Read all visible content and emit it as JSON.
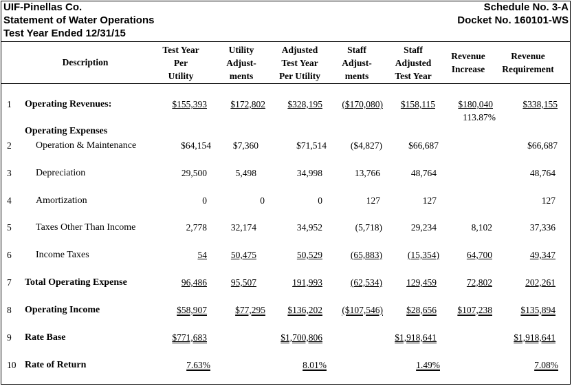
{
  "header": {
    "company": "UIF-Pinellas Co.",
    "statement": "Statement of Water Operations",
    "period": "Test Year Ended 12/31/15",
    "schedule": "Schedule No. 3-A",
    "docket": "Docket No. 160101-WS"
  },
  "columns": [
    {
      "lines": [
        "Description"
      ]
    },
    {
      "lines": [
        "Test Year",
        "Per",
        "Utility"
      ]
    },
    {
      "lines": [
        "Utility",
        "Adjust-",
        "ments"
      ]
    },
    {
      "lines": [
        "Adjusted",
        "Test Year",
        "Per Utility"
      ]
    },
    {
      "lines": [
        "Staff",
        "Adjust-",
        "ments"
      ]
    },
    {
      "lines": [
        "Staff",
        "Adjusted",
        "Test Year"
      ]
    },
    {
      "lines": [
        "Revenue",
        "Increase"
      ]
    },
    {
      "lines": [
        "Revenue",
        "Requirement"
      ]
    }
  ],
  "rows": [
    {
      "num": "1",
      "desc": "Operating Revenues:",
      "values": [
        "$155,393",
        "$172,802",
        "$328,195",
        "($170,080)",
        "$158,115",
        "$180,040",
        "$338,155"
      ],
      "note": "113.87%"
    },
    {
      "num": "",
      "desc": "Operating Expenses",
      "values": []
    },
    {
      "num": "2",
      "desc": "Operation & Maintenance",
      "values": [
        "$64,154",
        "$7,360",
        "$71,514",
        "($4,827)",
        "$66,687",
        "",
        "$66,687"
      ]
    },
    {
      "num": "3",
      "desc": "Depreciation",
      "values": [
        "29,500",
        "5,498",
        "34,998",
        "13,766",
        "48,764",
        "",
        "48,764"
      ]
    },
    {
      "num": "4",
      "desc": "Amortization",
      "values": [
        "0",
        "0",
        "0",
        "127",
        "127",
        "",
        "127"
      ]
    },
    {
      "num": "5",
      "desc": "Taxes Other Than Income",
      "values": [
        "2,778",
        "32,174",
        "34,952",
        "(5,718)",
        "29,234",
        "8,102",
        "37,336"
      ]
    },
    {
      "num": "6",
      "desc": "Income Taxes",
      "values": [
        "54",
        "50,475",
        "50,529",
        "(65,883)",
        "(15,354)",
        "64,700",
        "49,347"
      ]
    },
    {
      "num": "7",
      "desc": "Total Operating Expense",
      "values": [
        "96,486",
        "95,507",
        "191,993",
        "(62,534)",
        "129,459",
        "72,802",
        "202,261"
      ]
    },
    {
      "num": "8",
      "desc": "Operating Income",
      "values": [
        "$58,907",
        "$77,295",
        "$136,202",
        "($107,546)",
        "$28,656",
        "$107,238",
        "$135,894"
      ]
    },
    {
      "num": "9",
      "desc": "Rate Base",
      "values": [
        "$771,683",
        "",
        "$1,700,806",
        "",
        "$1,918,641",
        "",
        "$1,918,641"
      ]
    },
    {
      "num": "10",
      "desc": "Rate of Return",
      "values": [
        "7.63%",
        "",
        "8.01%",
        "",
        "1.49%",
        "",
        "7.08%"
      ]
    }
  ]
}
